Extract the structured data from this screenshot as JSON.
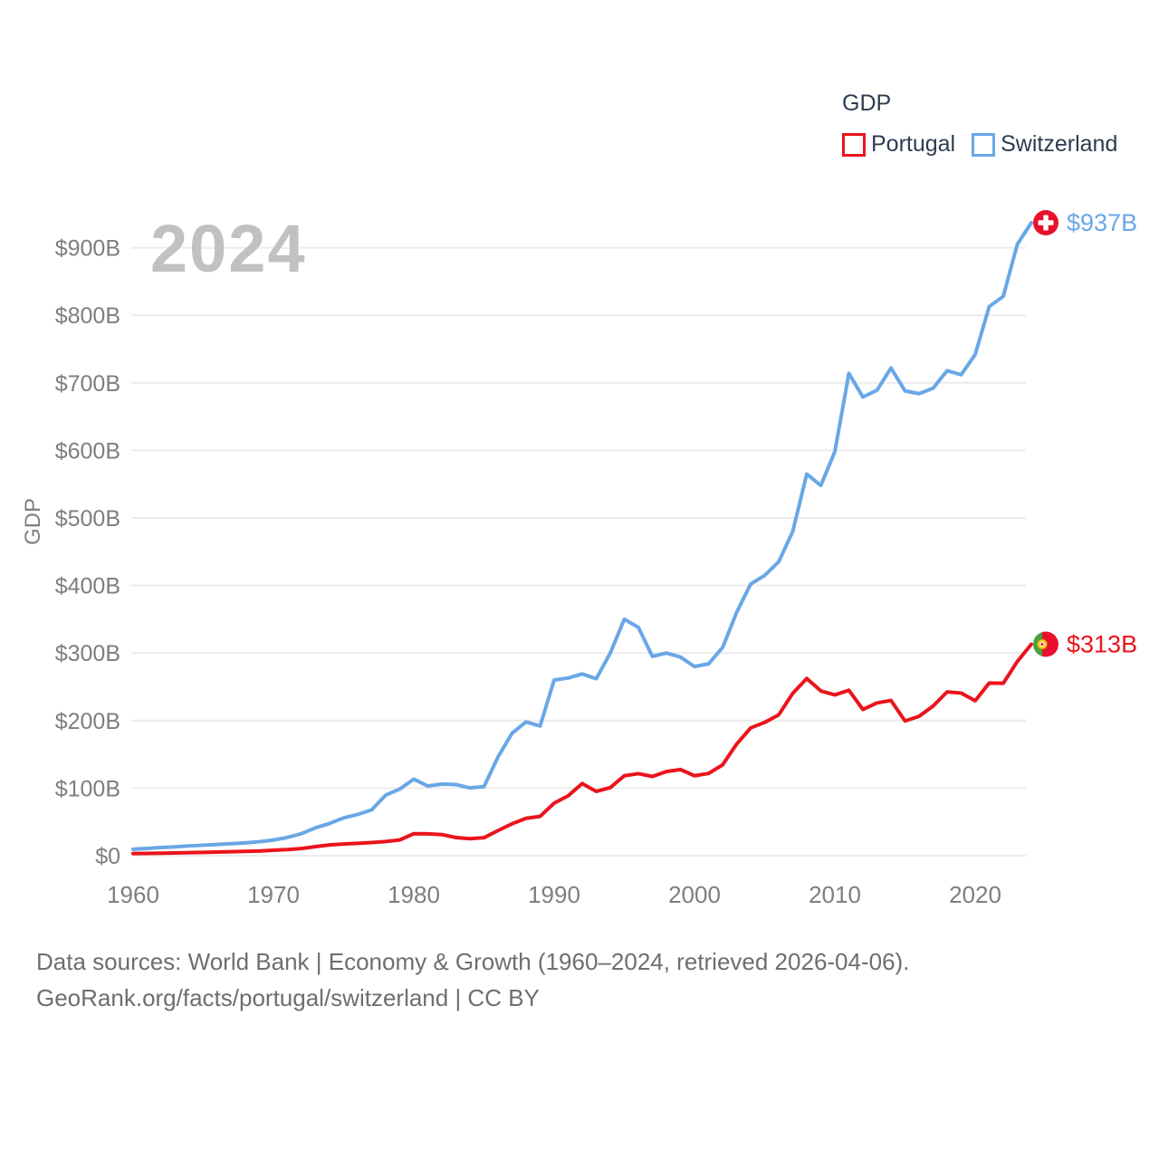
{
  "watermark": "2024",
  "legend": {
    "title": "GDP",
    "items": [
      {
        "label": "Portugal",
        "color": "#ea141c"
      },
      {
        "label": "Switzerland",
        "color": "#69a7e6"
      }
    ]
  },
  "colors": {
    "portugal_line": "#ea141c",
    "switzerland_line": "#69a7e6",
    "grid": "#ececec",
    "axis_text": "#7e7e7e",
    "watermark": "#c1c1c1",
    "legend_text": "#2d3c50",
    "footer_text": "#6e6e6e",
    "swiss_flag_red": "#e8112d",
    "portugal_flag_green": "#4a9e3f",
    "portugal_flag_red": "#e8112d",
    "portugal_emblem_yellow": "#f6d321"
  },
  "chart_data": {
    "type": "line",
    "title": "GDP",
    "ylabel": "GDP",
    "xlabel": "",
    "grid": "horizontal",
    "legend_position": "top-right",
    "xlim": [
      1960,
      2024
    ],
    "ylim": [
      0,
      960
    ],
    "x_ticks": [
      1960,
      1970,
      1980,
      1990,
      2000,
      2010,
      2020
    ],
    "y_ticks": [
      {
        "value": 0,
        "label": "$0"
      },
      {
        "value": 100,
        "label": "$100B"
      },
      {
        "value": 200,
        "label": "$200B"
      },
      {
        "value": 300,
        "label": "$300B"
      },
      {
        "value": 400,
        "label": "$400B"
      },
      {
        "value": 500,
        "label": "$500B"
      },
      {
        "value": 600,
        "label": "$600B"
      },
      {
        "value": 700,
        "label": "$700B"
      },
      {
        "value": 800,
        "label": "$800B"
      },
      {
        "value": 900,
        "label": "$900B"
      }
    ],
    "years": [
      1960,
      1961,
      1962,
      1963,
      1964,
      1965,
      1966,
      1967,
      1968,
      1969,
      1970,
      1971,
      1972,
      1973,
      1974,
      1975,
      1976,
      1977,
      1978,
      1979,
      1980,
      1981,
      1982,
      1983,
      1984,
      1985,
      1986,
      1987,
      1988,
      1989,
      1990,
      1991,
      1992,
      1993,
      1994,
      1995,
      1996,
      1997,
      1998,
      1999,
      2000,
      2001,
      2002,
      2003,
      2004,
      2005,
      2006,
      2007,
      2008,
      2009,
      2010,
      2011,
      2012,
      2013,
      2014,
      2015,
      2016,
      2017,
      2018,
      2019,
      2020,
      2021,
      2022,
      2023,
      2024
    ],
    "series": [
      {
        "name": "Switzerland",
        "color": "#69a7e6",
        "flag": "switzerland",
        "end_label": "$937B",
        "values": [
          9.5,
          10.8,
          12.1,
          13.1,
          14.5,
          15.5,
          16.6,
          17.8,
          19.0,
          20.7,
          23.1,
          27.0,
          32.6,
          41.3,
          47.7,
          55.9,
          61.0,
          67.9,
          89.7,
          98.6,
          113.3,
          103.0,
          106.1,
          105.3,
          100.3,
          102.2,
          146.1,
          181.2,
          198.0,
          192.0,
          260.0,
          263.0,
          269.0,
          262.0,
          300.0,
          350.0,
          338.0,
          295.0,
          300.0,
          294.0,
          280.0,
          284.0,
          308.0,
          360.0,
          402.0,
          415.0,
          435.0,
          480.0,
          565.0,
          548.0,
          598.0,
          714.0,
          679.0,
          689.0,
          722.0,
          688.0,
          684.0,
          692.0,
          718.0,
          712.0,
          742.0,
          813.0,
          828.0,
          905.0,
          937.0
        ]
      },
      {
        "name": "Portugal",
        "color": "#ea141c",
        "flag": "portugal",
        "end_label": "$313B",
        "values": [
          3.2,
          3.4,
          3.7,
          4.1,
          4.5,
          4.8,
          5.3,
          5.8,
          6.3,
          6.9,
          8.1,
          9.0,
          10.6,
          13.4,
          15.9,
          17.3,
          18.2,
          19.4,
          21.0,
          23.3,
          32.5,
          32.3,
          31.2,
          26.8,
          25.2,
          26.6,
          37.2,
          47.2,
          55.3,
          58.2,
          77.7,
          88.6,
          106.8,
          95.1,
          100.8,
          118.3,
          121.4,
          117.3,
          124.5,
          127.5,
          118.3,
          121.7,
          134.4,
          165.2,
          189.1,
          197.3,
          208.5,
          240.3,
          262.3,
          243.9,
          238.0,
          244.9,
          216.4,
          226.1,
          229.8,
          199.4,
          206.3,
          221.5,
          242.5,
          240.7,
          229.4,
          255.6,
          255.2,
          287.4,
          313.0
        ]
      }
    ]
  },
  "footer": {
    "line1": "Data sources: World Bank | Economy & Growth (1960–2024, retrieved 2026-04-06).",
    "line2": "GeoRank.org/facts/portugal/switzerland | CC BY"
  }
}
